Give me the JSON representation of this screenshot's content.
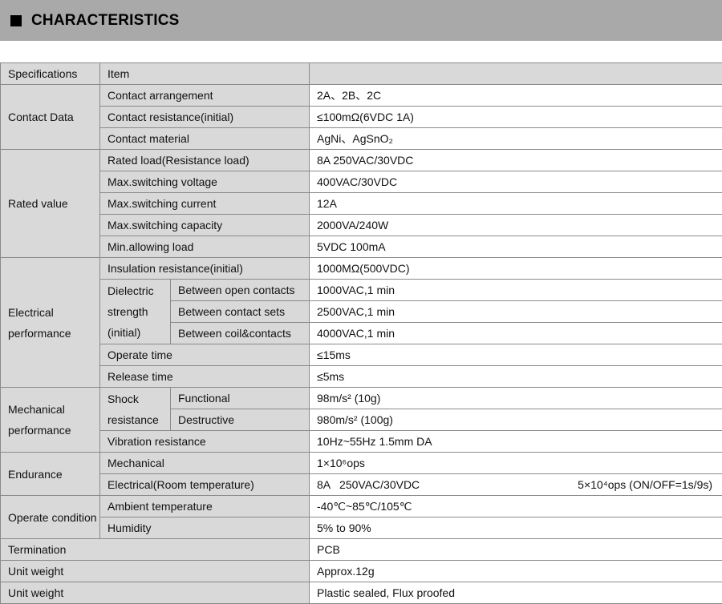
{
  "title": "CHARACTERISTICS",
  "header": {
    "spec": "Specifications",
    "item": "Item",
    "value": ""
  },
  "contact": {
    "group": "Contact Data",
    "rows": [
      [
        "Contact arrangement",
        "2A、2B、2C"
      ],
      [
        "Contact resistance(initial)",
        "≤100mΩ(6VDC 1A)"
      ],
      [
        "Contact material",
        "AgNi、AgSnO₂"
      ]
    ]
  },
  "rated": {
    "group": "Rated value",
    "rows": [
      [
        "Rated load(Resistance load)",
        "8A 250VAC/30VDC"
      ],
      [
        "Max.switching voltage",
        "400VAC/30VDC"
      ],
      [
        "Max.switching current",
        "12A"
      ],
      [
        "Max.switching capacity",
        "2000VA/240W"
      ],
      [
        "Min.allowing load",
        "5VDC 100mA"
      ]
    ]
  },
  "electrical": {
    "group": "Electrical performance",
    "insulation": [
      "Insulation resistance(initial)",
      "1000MΩ(500VDC)"
    ],
    "dielectric": "Dielectric strength (initial)",
    "dielectric_rows": [
      [
        "Between open contacts",
        "1000VAC,1 min"
      ],
      [
        "Between contact sets",
        "2500VAC,1 min"
      ],
      [
        "Between coil&contacts",
        "4000VAC,1 min"
      ]
    ],
    "operate": [
      "Operate time",
      "≤15ms"
    ],
    "release": [
      "Release time",
      "≤5ms"
    ]
  },
  "mechanical": {
    "group": "Mechanical performance",
    "shock": "Shock resistance",
    "shock_rows": [
      [
        "Functional",
        "98m/s² (10g)"
      ],
      [
        "Destructive",
        "980m/s² (100g)"
      ]
    ],
    "vibration": [
      "Vibration resistance",
      "10Hz~55Hz 1.5mm DA"
    ]
  },
  "endurance": {
    "group": "Endurance",
    "mechanical": [
      "Mechanical",
      "1×10⁶ops"
    ],
    "electrical": [
      "Electrical(Room temperature)",
      "8A   250VAC/30VDC",
      "5×10⁴ops (ON/OFF=1s/9s)"
    ]
  },
  "operate": {
    "group": "Operate condition",
    "rows": [
      [
        "Ambient temperature",
        "-40℃~85℃/105℃"
      ],
      [
        "Humidity",
        "5% to 90%"
      ]
    ]
  },
  "footer_rows": [
    [
      "Termination",
      "PCB"
    ],
    [
      "Unit weight",
      "Approx.12g"
    ],
    [
      "Unit weight",
      "Plastic sealed, Flux proofed"
    ]
  ]
}
